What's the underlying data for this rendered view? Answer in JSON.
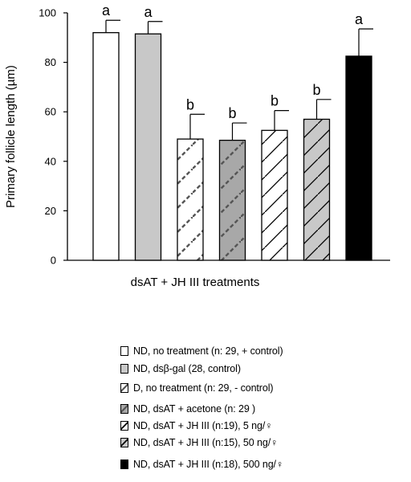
{
  "chart_data": {
    "type": "bar",
    "title": "",
    "xlabel": "dsAT + JH III treatments",
    "ylabel": "Primary follicle length (µm)",
    "ylim": [
      0,
      100
    ],
    "yticks": [
      0,
      20,
      40,
      60,
      80,
      100
    ],
    "grid": false,
    "legend_position": "bottom",
    "bars": [
      {
        "label": "ND, no treatment (n: 29, + control)",
        "value": 92,
        "error": 5,
        "letter": "a",
        "fill": "#ffffff",
        "pattern": "none",
        "hatch": "none"
      },
      {
        "label": "ND, dsβ-gal (28, control)",
        "value": 91.5,
        "error": 5,
        "letter": "a",
        "fill": "#c8c8c8",
        "pattern": "none",
        "hatch": "none"
      },
      {
        "label": "D, no treatment (n: 29, - control)",
        "value": 49,
        "error": 10,
        "letter": "b",
        "fill": "#ffffff",
        "pattern": "dashed",
        "hatch": "diagonal-dashed"
      },
      {
        "label": "ND, dsAT + acetone (n: 29 )",
        "value": 48.5,
        "error": 7,
        "letter": "b",
        "fill": "#a8a8a8",
        "pattern": "dashed",
        "hatch": "diagonal-dashed"
      },
      {
        "label": "ND, dsAT + JH III (n:19), 5 ng/♀",
        "value": 52.5,
        "error": 8,
        "letter": "b",
        "fill": "#ffffff",
        "pattern": "solid",
        "hatch": "diagonal-solid"
      },
      {
        "label": "ND, dsAT + JH III (n:15), 50 ng/♀",
        "value": 57,
        "error": 8,
        "letter": "b",
        "fill": "#c8c8c8",
        "pattern": "solid",
        "hatch": "diagonal-solid"
      },
      {
        "label": "ND, dsAT + JH III (n:18), 500 ng/♀",
        "value": 82.5,
        "error": 11,
        "letter": "a",
        "fill": "#000000",
        "pattern": "none",
        "hatch": "none"
      }
    ]
  }
}
